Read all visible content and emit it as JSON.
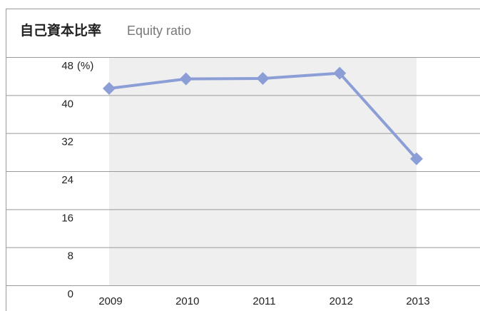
{
  "chart_data": {
    "type": "line",
    "title": "自己資本比率",
    "subtitle": "Equity ratio",
    "y_unit": "(%)",
    "categories": [
      "2009",
      "2010",
      "2011",
      "2012",
      "2013"
    ],
    "series": [
      {
        "name": "Equity ratio",
        "color": "#8c9ed6",
        "values": [
          41.4,
          43.4,
          43.5,
          44.6,
          26.6
        ]
      }
    ],
    "ylim": [
      0,
      48
    ],
    "yticks": [
      0,
      8,
      16,
      24,
      32,
      40,
      48
    ],
    "grid": true
  }
}
